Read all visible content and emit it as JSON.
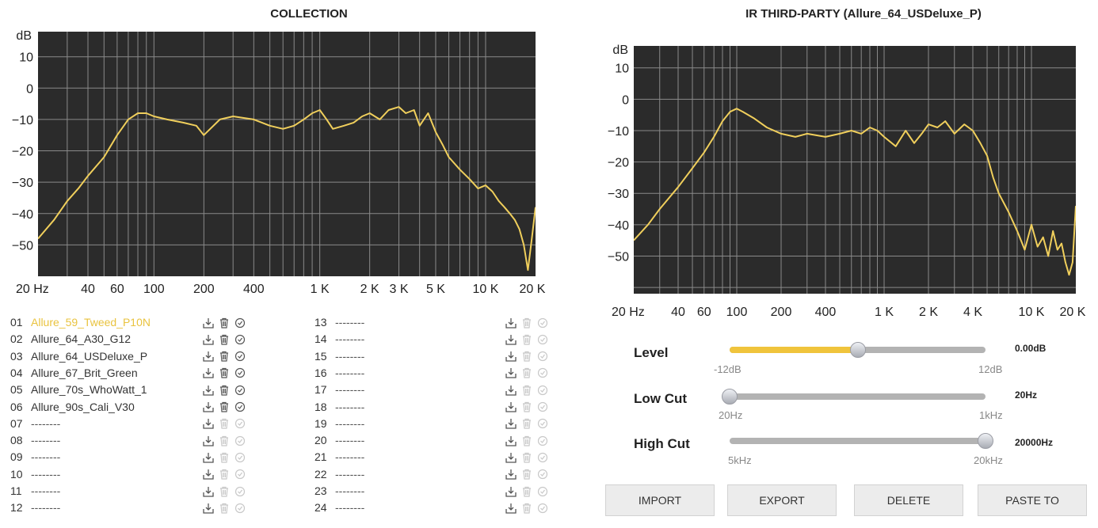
{
  "left_title": "COLLECTION",
  "right_title": "IR THIRD-PARTY (Allure_64_USDeluxe_P)",
  "chart_data": [
    {
      "type": "line",
      "title": "COLLECTION",
      "ylabel": "dB",
      "xlim": [
        20,
        20000
      ],
      "ylim": [
        -60,
        18
      ],
      "x_scale": "log",
      "y_ticks": [
        10,
        0,
        -10,
        -20,
        -30,
        -40,
        -50
      ],
      "x_ticks": [
        {
          "value": 20,
          "label": "20 Hz"
        },
        {
          "value": 40,
          "label": "40"
        },
        {
          "value": 60,
          "label": "60"
        },
        {
          "value": 100,
          "label": "100"
        },
        {
          "value": 200,
          "label": "200"
        },
        {
          "value": 400,
          "label": "400"
        },
        {
          "value": 1000,
          "label": "1 K"
        },
        {
          "value": 2000,
          "label": "2 K"
        },
        {
          "value": 3000,
          "label": "3 K"
        },
        {
          "value": 5000,
          "label": "5 K"
        },
        {
          "value": 10000,
          "label": "10 K"
        },
        {
          "value": 20000,
          "label": "20 K"
        }
      ],
      "grid": true,
      "series": [
        {
          "color": "#f0cf5c",
          "x": [
            20,
            25,
            30,
            35,
            40,
            50,
            60,
            70,
            80,
            90,
            100,
            120,
            150,
            180,
            200,
            250,
            300,
            400,
            500,
            600,
            700,
            800,
            900,
            1000,
            1100,
            1200,
            1400,
            1600,
            1800,
            2000,
            2300,
            2600,
            3000,
            3300,
            3700,
            4000,
            4500,
            5000,
            5500,
            6000,
            7000,
            8000,
            9000,
            10000,
            11000,
            12000,
            13000,
            14000,
            15000,
            16000,
            17000,
            18000,
            19000,
            20000
          ],
          "values": [
            -48,
            -42,
            -36,
            -32,
            -28,
            -22,
            -15,
            -10,
            -8,
            -8,
            -9,
            -10,
            -11,
            -12,
            -15,
            -10,
            -9,
            -10,
            -12,
            -13,
            -12,
            -10,
            -8,
            -7,
            -10,
            -13,
            -12,
            -11,
            -9,
            -8,
            -10,
            -7,
            -6,
            -8,
            -7,
            -12,
            -8,
            -14,
            -18,
            -22,
            -26,
            -29,
            -32,
            -31,
            -33,
            -36,
            -38,
            -40,
            -42,
            -45,
            -50,
            -58,
            -48,
            -38
          ]
        }
      ]
    },
    {
      "type": "line",
      "title": "IR THIRD-PARTY (Allure_64_USDeluxe_P)",
      "ylabel": "dB",
      "xlim": [
        20,
        20000
      ],
      "ylim": [
        -62,
        17
      ],
      "x_scale": "log",
      "y_ticks": [
        10,
        0,
        -10,
        -20,
        -30,
        -40,
        -50
      ],
      "x_ticks": [
        {
          "value": 20,
          "label": "20 Hz"
        },
        {
          "value": 40,
          "label": "40"
        },
        {
          "value": 60,
          "label": "60"
        },
        {
          "value": 100,
          "label": "100"
        },
        {
          "value": 200,
          "label": "200"
        },
        {
          "value": 400,
          "label": "400"
        },
        {
          "value": 1000,
          "label": "1 K"
        },
        {
          "value": 2000,
          "label": "2 K"
        },
        {
          "value": 4000,
          "label": "4 K"
        },
        {
          "value": 10000,
          "label": "10 K"
        },
        {
          "value": 20000,
          "label": "20 K"
        }
      ],
      "grid": true,
      "series": [
        {
          "color": "#f0cf5c",
          "x": [
            20,
            25,
            30,
            40,
            50,
            60,
            70,
            80,
            90,
            100,
            110,
            130,
            160,
            200,
            250,
            300,
            400,
            500,
            600,
            700,
            800,
            900,
            1000,
            1200,
            1400,
            1600,
            1800,
            2000,
            2300,
            2600,
            3000,
            3500,
            4000,
            4500,
            5000,
            5500,
            6000,
            7000,
            8000,
            9000,
            10000,
            11000,
            12000,
            13000,
            14000,
            15000,
            16000,
            17000,
            18000,
            19000,
            20000
          ],
          "values": [
            -45,
            -40,
            -35,
            -28,
            -22,
            -17,
            -12,
            -7,
            -4,
            -3,
            -4,
            -6,
            -9,
            -11,
            -12,
            -11,
            -12,
            -11,
            -10,
            -11,
            -9,
            -10,
            -12,
            -15,
            -10,
            -14,
            -11,
            -8,
            -9,
            -7,
            -11,
            -8,
            -10,
            -14,
            -18,
            -25,
            -30,
            -36,
            -42,
            -48,
            -40,
            -47,
            -44,
            -50,
            -42,
            -48,
            -46,
            -52,
            -56,
            -52,
            -34
          ]
        }
      ]
    }
  ],
  "collection": {
    "active_index": 0,
    "slots": [
      {
        "num": "01",
        "name": "Allure_59_Tweed_P10N",
        "filled": true
      },
      {
        "num": "02",
        "name": "Allure_64_A30_G12",
        "filled": true
      },
      {
        "num": "03",
        "name": "Allure_64_USDeluxe_P",
        "filled": true
      },
      {
        "num": "04",
        "name": "Allure_67_Brit_Green",
        "filled": true
      },
      {
        "num": "05",
        "name": "Allure_70s_WhoWatt_1",
        "filled": true
      },
      {
        "num": "06",
        "name": "Allure_90s_Cali_V30",
        "filled": true
      },
      {
        "num": "07",
        "name": "--------",
        "filled": false
      },
      {
        "num": "08",
        "name": "--------",
        "filled": false
      },
      {
        "num": "09",
        "name": "--------",
        "filled": false
      },
      {
        "num": "10",
        "name": "--------",
        "filled": false
      },
      {
        "num": "11",
        "name": "--------",
        "filled": false
      },
      {
        "num": "12",
        "name": "--------",
        "filled": false
      },
      {
        "num": "13",
        "name": "--------",
        "filled": false
      },
      {
        "num": "14",
        "name": "--------",
        "filled": false
      },
      {
        "num": "15",
        "name": "--------",
        "filled": false
      },
      {
        "num": "16",
        "name": "--------",
        "filled": false
      },
      {
        "num": "17",
        "name": "--------",
        "filled": false
      },
      {
        "num": "18",
        "name": "--------",
        "filled": false
      },
      {
        "num": "19",
        "name": "--------",
        "filled": false
      },
      {
        "num": "20",
        "name": "--------",
        "filled": false
      },
      {
        "num": "21",
        "name": "--------",
        "filled": false
      },
      {
        "num": "22",
        "name": "--------",
        "filled": false
      },
      {
        "num": "23",
        "name": "--------",
        "filled": false
      },
      {
        "num": "24",
        "name": "--------",
        "filled": false
      }
    ]
  },
  "controls": {
    "level": {
      "label": "Level",
      "value": "0.00dB",
      "min": "-12dB",
      "max": "12dB",
      "fraction": 0.5
    },
    "low_cut": {
      "label": "Low Cut",
      "value": "20Hz",
      "min": "20Hz",
      "max": "1kHz",
      "fraction": 0.0
    },
    "high_cut": {
      "label": "High Cut",
      "value": "20000Hz",
      "min": "5kHz",
      "max": "20kHz",
      "fraction": 1.0
    }
  },
  "buttons": {
    "import": "IMPORT",
    "export": "EXPORT",
    "delete": "DELETE",
    "paste_to": "PASTE TO"
  },
  "colors": {
    "accent": "#f0c43c",
    "plot_bg": "#2b2b2b",
    "curve": "#f0cf5c"
  },
  "icons": {
    "import": "import-icon",
    "delete": "trash-icon",
    "apply": "check-circle-icon"
  }
}
